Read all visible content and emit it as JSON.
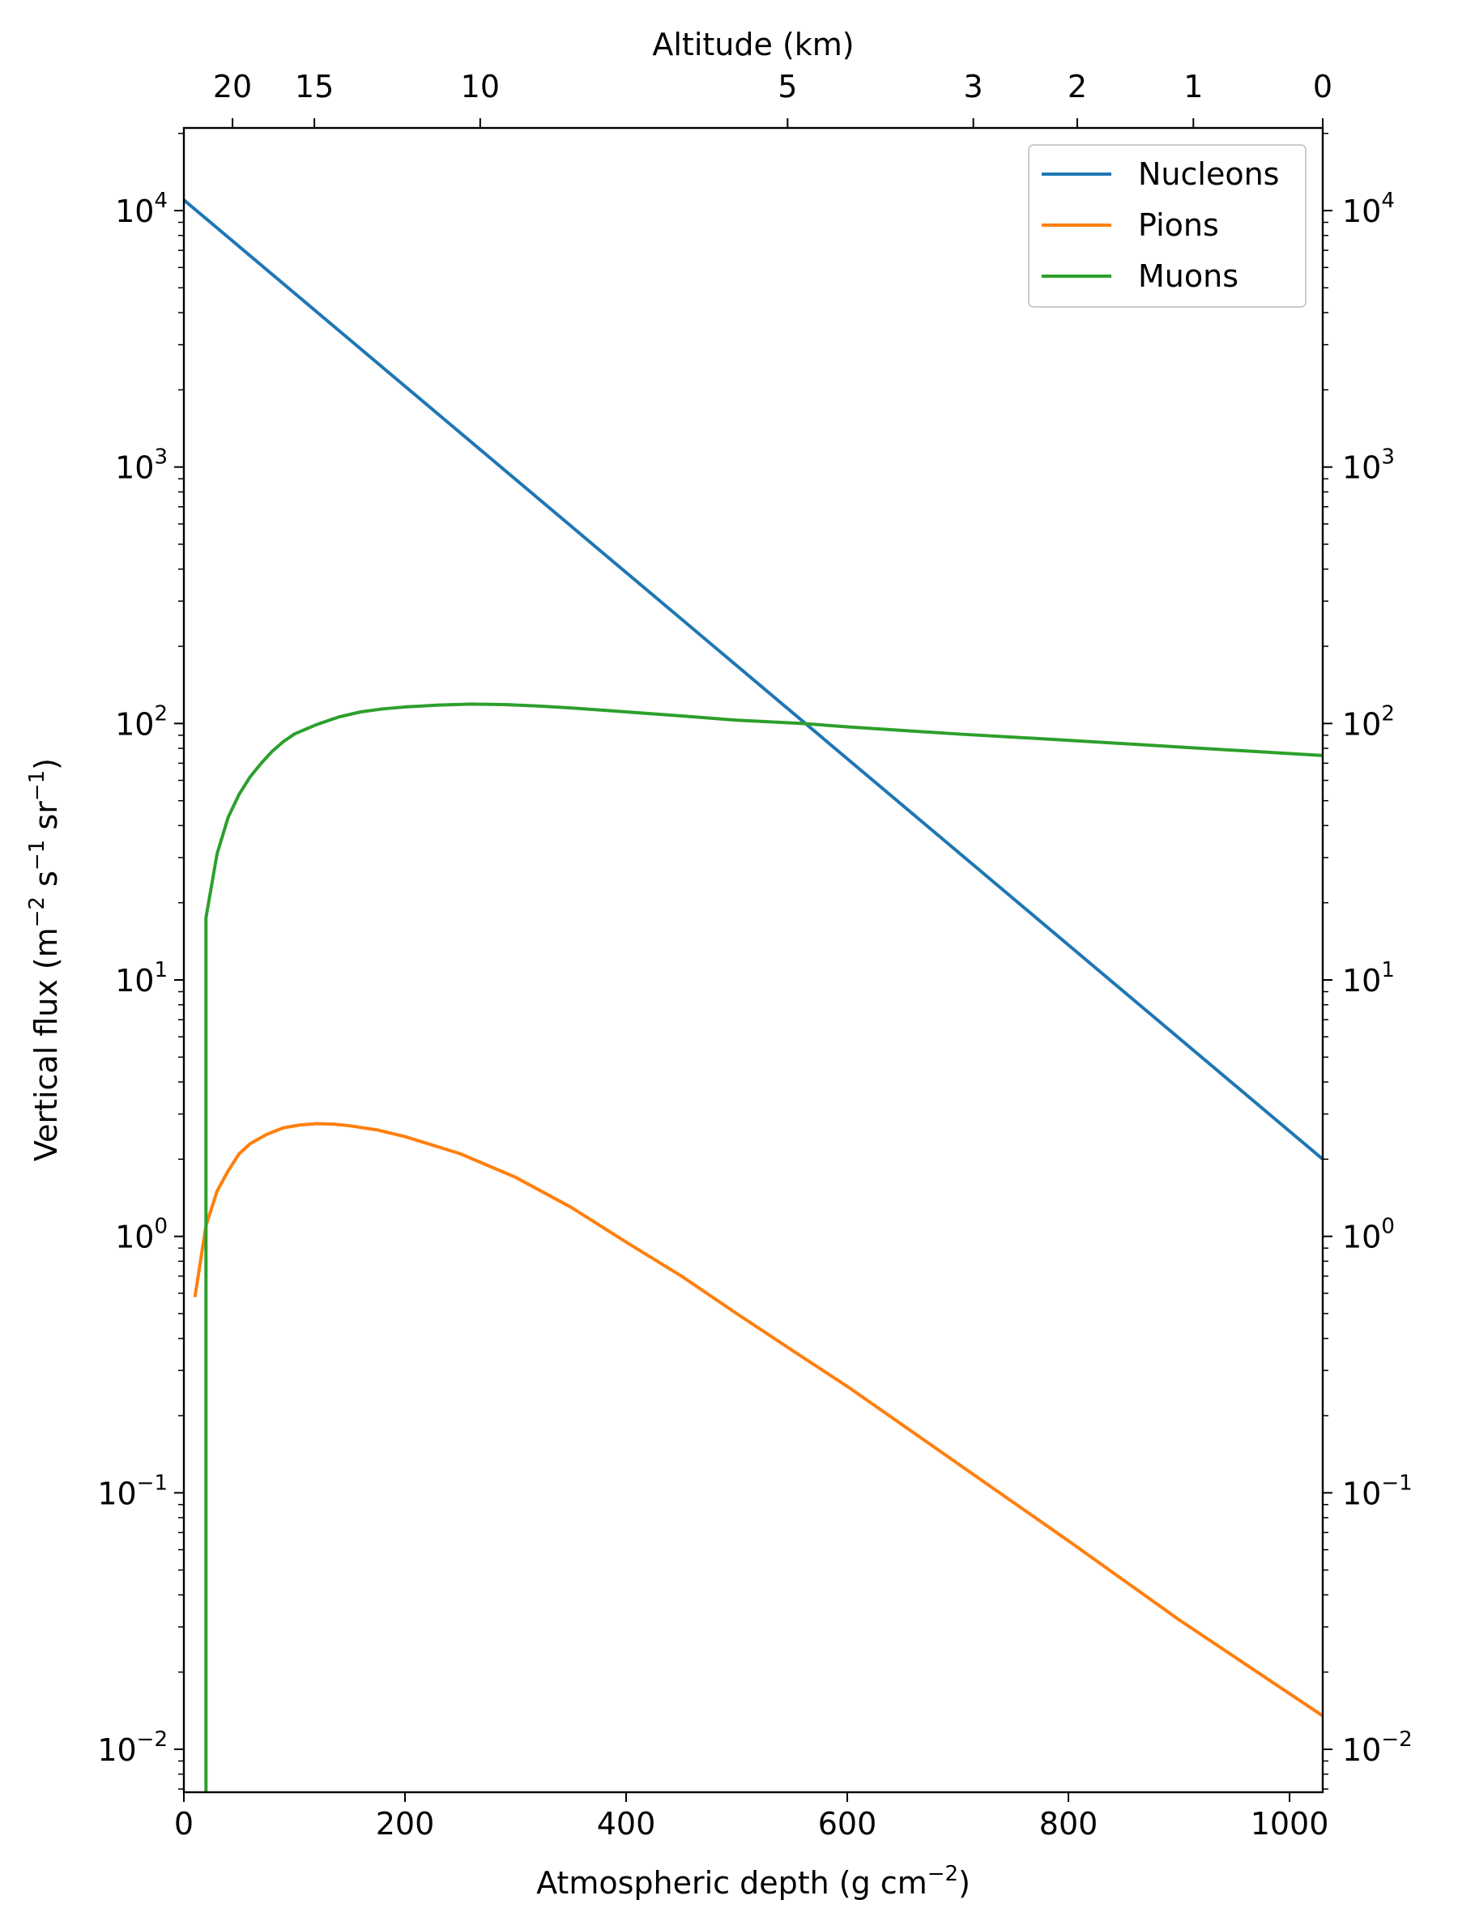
{
  "chart_data": {
    "type": "line",
    "xlabel": "Atmospheric depth (g cm",
    "xlabel_sup": "−2",
    "xlabel_close": ")",
    "ylabel_parts": [
      {
        "t": "Vertical flux (m"
      },
      {
        "t": "−2",
        "sup": true
      },
      {
        "t": " s"
      },
      {
        "t": "−1",
        "sup": true
      },
      {
        "t": " sr"
      },
      {
        "t": "−1",
        "sup": true
      },
      {
        "t": ")"
      }
    ],
    "top_xlabel": "Altitude (km)",
    "xlim": [
      0,
      1030
    ],
    "ylim": [
      0.0068,
      21000
    ],
    "yscale": "log",
    "x_ticks": [
      0,
      200,
      400,
      600,
      800,
      1000
    ],
    "y_ticks": [
      {
        "value": 0.01,
        "base": "10",
        "exp": "−2"
      },
      {
        "value": 0.1,
        "base": "10",
        "exp": "−1"
      },
      {
        "value": 1,
        "base": "10",
        "exp": "0"
      },
      {
        "value": 10,
        "base": "10",
        "exp": "1"
      },
      {
        "value": 100,
        "base": "10",
        "exp": "2"
      },
      {
        "value": 1000,
        "base": "10",
        "exp": "3"
      },
      {
        "value": 10000,
        "base": "10",
        "exp": "4"
      }
    ],
    "top_ticks": [
      {
        "label": "20",
        "depth": 44
      },
      {
        "label": "15",
        "depth": 118
      },
      {
        "label": "10",
        "depth": 268
      },
      {
        "label": "5",
        "depth": 546
      },
      {
        "label": "3",
        "depth": 714
      },
      {
        "label": "2",
        "depth": 808
      },
      {
        "label": "1",
        "depth": 913
      },
      {
        "label": "0",
        "depth": 1030
      }
    ],
    "grid": false,
    "legend_position": "top-right",
    "series": [
      {
        "name": "Nucleons",
        "color": "#1f77b4",
        "points": [
          [
            0,
            11000
          ],
          [
            1030,
            2.0
          ]
        ]
      },
      {
        "name": "Pions",
        "color": "#ff7f0e",
        "points": [
          [
            10,
            0.58
          ],
          [
            20,
            1.1
          ],
          [
            30,
            1.5
          ],
          [
            40,
            1.8
          ],
          [
            50,
            2.1
          ],
          [
            60,
            2.3
          ],
          [
            75,
            2.5
          ],
          [
            90,
            2.65
          ],
          [
            105,
            2.72
          ],
          [
            120,
            2.75
          ],
          [
            135,
            2.74
          ],
          [
            150,
            2.7
          ],
          [
            175,
            2.6
          ],
          [
            200,
            2.45
          ],
          [
            250,
            2.1
          ],
          [
            300,
            1.7
          ],
          [
            350,
            1.3
          ],
          [
            400,
            0.95
          ],
          [
            450,
            0.7
          ],
          [
            500,
            0.5
          ],
          [
            550,
            0.36
          ],
          [
            600,
            0.26
          ],
          [
            700,
            0.13
          ],
          [
            800,
            0.065
          ],
          [
            900,
            0.032
          ],
          [
            1030,
            0.0135
          ]
        ]
      },
      {
        "name": "Muons",
        "color": "#2ca02c",
        "points": [
          [
            20,
            0.0068
          ],
          [
            20,
            17.5
          ],
          [
            30,
            31
          ],
          [
            40,
            43
          ],
          [
            50,
            53
          ],
          [
            60,
            62
          ],
          [
            70,
            70
          ],
          [
            80,
            78
          ],
          [
            90,
            85
          ],
          [
            100,
            91
          ],
          [
            120,
            99
          ],
          [
            140,
            106
          ],
          [
            160,
            111
          ],
          [
            180,
            114
          ],
          [
            200,
            116
          ],
          [
            230,
            118
          ],
          [
            260,
            119
          ],
          [
            290,
            118.5
          ],
          [
            320,
            117
          ],
          [
            350,
            115
          ],
          [
            400,
            111
          ],
          [
            450,
            107
          ],
          [
            500,
            103
          ],
          [
            560,
            100
          ],
          [
            600,
            97
          ],
          [
            700,
            91
          ],
          [
            800,
            86
          ],
          [
            900,
            81
          ],
          [
            1030,
            75
          ]
        ]
      }
    ]
  }
}
